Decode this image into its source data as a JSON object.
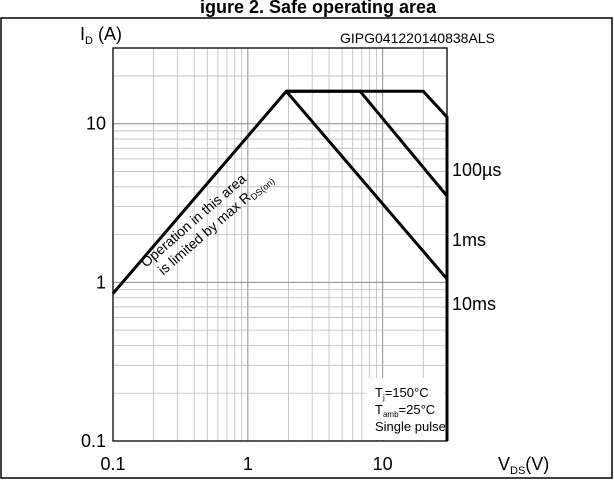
{
  "header_fragment": "igure 2. Safe operating area",
  "chart_data": {
    "type": "line",
    "title": "",
    "figure_id": "GIPG041220140838ALS",
    "ylabel": {
      "main": "I",
      "sub": "D",
      "unit": " (A)"
    },
    "xlabel": {
      "main": "V",
      "sub": "DS",
      "unit": "(V)"
    },
    "x_scale": "log",
    "y_scale": "log",
    "xlim": [
      0.1,
      30
    ],
    "ylim": [
      0.1,
      30
    ],
    "grid": true,
    "x_ticks": [
      {
        "value": 0.1,
        "label": "0.1"
      },
      {
        "value": 1,
        "label": "1"
      },
      {
        "value": 10,
        "label": "10"
      }
    ],
    "y_ticks": [
      {
        "value": 0.1,
        "label": "0.1"
      },
      {
        "value": 1,
        "label": "1"
      },
      {
        "value": 10,
        "label": "10"
      }
    ],
    "series": [
      {
        "name": "100µs",
        "x": [
          0.1,
          1.93,
          20,
          30,
          30
        ],
        "y": [
          0.85,
          16,
          16,
          11,
          0.1
        ]
      },
      {
        "name": "1ms",
        "x": [
          1.93,
          6.8,
          30
        ],
        "y": [
          16,
          16,
          3.5
        ]
      },
      {
        "name": "10ms",
        "x": [
          1.93,
          30
        ],
        "y": [
          16,
          1.05
        ]
      }
    ],
    "annotations": {
      "rds_line1": "Operation in this area",
      "rds_line2_main": "is limited by max R",
      "rds_line2_sub": "DS(on)",
      "cond_tj_main": "T",
      "cond_tj_sub": "j",
      "cond_tj_val": "=150°C",
      "cond_tamb_main": "T",
      "cond_tamb_sub": "amb",
      "cond_tamb_val": "=25°C",
      "cond_pulse": "Single pulse"
    }
  }
}
